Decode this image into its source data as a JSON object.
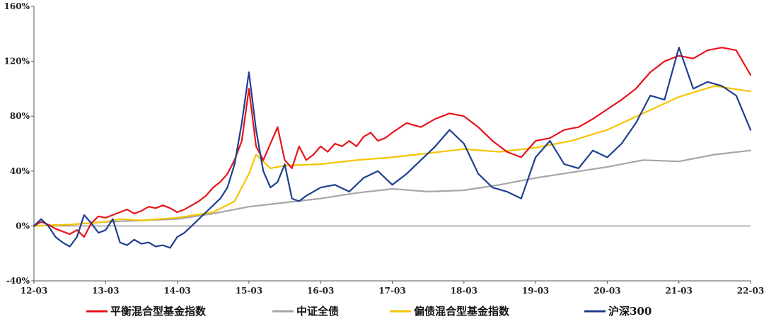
{
  "chart_data": {
    "type": "line",
    "title": "",
    "xlabel": "",
    "ylabel": "",
    "ylim": [
      -40,
      160
    ],
    "y_ticks": [
      "160%",
      "120%",
      "80%",
      "40%",
      "0%",
      "-40%"
    ],
    "y_tick_values": [
      160,
      120,
      80,
      40,
      0,
      -40
    ],
    "x_ticks": [
      "12-03",
      "13-03",
      "14-03",
      "15-03",
      "16-03",
      "17-03",
      "18-03",
      "19-03",
      "20-03",
      "21-03",
      "22-03"
    ],
    "grid": false,
    "legend_position": "bottom",
    "series": [
      {
        "name": "平衡混合型基金指数",
        "color": "#e8141a",
        "x": [
          0,
          0.1,
          0.2,
          0.3,
          0.4,
          0.5,
          0.6,
          0.7,
          0.8,
          0.9,
          1.0,
          1.1,
          1.2,
          1.3,
          1.4,
          1.5,
          1.6,
          1.7,
          1.8,
          1.9,
          2.0,
          2.1,
          2.2,
          2.3,
          2.4,
          2.5,
          2.6,
          2.7,
          2.8,
          2.9,
          3.0,
          3.1,
          3.2,
          3.3,
          3.4,
          3.5,
          3.6,
          3.7,
          3.8,
          3.9,
          4.0,
          4.1,
          4.2,
          4.3,
          4.4,
          4.5,
          4.6,
          4.7,
          4.8,
          4.9,
          5.0,
          5.2,
          5.4,
          5.6,
          5.8,
          6.0,
          6.2,
          6.4,
          6.6,
          6.8,
          7.0,
          7.2,
          7.4,
          7.6,
          7.8,
          8.0,
          8.2,
          8.4,
          8.6,
          8.8,
          9.0,
          9.2,
          9.4,
          9.6,
          9.8,
          10.0
        ],
        "values": [
          0,
          3,
          1,
          -2,
          -4,
          -6,
          -3,
          -8,
          2,
          7,
          6,
          8,
          10,
          12,
          9,
          11,
          14,
          13,
          15,
          13,
          10,
          12,
          15,
          18,
          22,
          28,
          32,
          38,
          48,
          62,
          100,
          58,
          48,
          60,
          72,
          48,
          42,
          58,
          48,
          52,
          58,
          54,
          60,
          58,
          62,
          58,
          65,
          68,
          62,
          64,
          68,
          75,
          72,
          78,
          82,
          80,
          72,
          62,
          54,
          50,
          62,
          64,
          70,
          72,
          78,
          85,
          92,
          100,
          112,
          120,
          124,
          122,
          128,
          130,
          128,
          110
        ]
      },
      {
        "name": "中证全债",
        "color": "#a6a6a6",
        "x": [
          0,
          0.5,
          1.0,
          1.5,
          2.0,
          2.5,
          3.0,
          3.5,
          4.0,
          4.5,
          5.0,
          5.5,
          6.0,
          6.5,
          7.0,
          7.5,
          8.0,
          8.5,
          9.0,
          9.5,
          10.0
        ],
        "values": [
          0,
          1,
          3,
          4,
          5,
          9,
          14,
          17,
          20,
          24,
          27,
          25,
          26,
          30,
          35,
          39,
          43,
          48,
          47,
          52,
          55
        ]
      },
      {
        "name": "偏债混合型基金指数",
        "color": "#f5c400",
        "x": [
          0,
          0.5,
          1.0,
          1.2,
          1.5,
          2.0,
          2.5,
          2.8,
          3.0,
          3.1,
          3.3,
          3.5,
          4.0,
          4.5,
          5.0,
          5.5,
          6.0,
          6.5,
          7.0,
          7.5,
          8.0,
          8.5,
          9.0,
          9.5,
          10.0
        ],
        "values": [
          0,
          1,
          3,
          5,
          4,
          6,
          10,
          18,
          38,
          52,
          42,
          44,
          45,
          48,
          50,
          53,
          56,
          54,
          57,
          62,
          70,
          82,
          94,
          102,
          98
        ]
      },
      {
        "name": "沪深300",
        "color": "#1f3f8f",
        "x": [
          0,
          0.1,
          0.2,
          0.3,
          0.4,
          0.5,
          0.6,
          0.7,
          0.8,
          0.9,
          1.0,
          1.1,
          1.2,
          1.3,
          1.4,
          1.5,
          1.6,
          1.7,
          1.8,
          1.9,
          2.0,
          2.1,
          2.2,
          2.3,
          2.4,
          2.5,
          2.6,
          2.7,
          2.8,
          2.9,
          3.0,
          3.1,
          3.2,
          3.3,
          3.4,
          3.5,
          3.6,
          3.7,
          3.8,
          3.9,
          4.0,
          4.2,
          4.4,
          4.6,
          4.8,
          5.0,
          5.2,
          5.4,
          5.6,
          5.8,
          6.0,
          6.2,
          6.4,
          6.6,
          6.8,
          7.0,
          7.2,
          7.4,
          7.6,
          7.8,
          8.0,
          8.2,
          8.4,
          8.6,
          8.8,
          9.0,
          9.2,
          9.4,
          9.6,
          9.8,
          10.0
        ],
        "values": [
          0,
          5,
          0,
          -8,
          -12,
          -15,
          -8,
          8,
          2,
          -5,
          -3,
          5,
          -12,
          -14,
          -10,
          -13,
          -12,
          -15,
          -14,
          -16,
          -8,
          -5,
          0,
          5,
          10,
          15,
          20,
          28,
          45,
          75,
          112,
          70,
          40,
          28,
          32,
          45,
          20,
          18,
          22,
          25,
          28,
          30,
          25,
          35,
          40,
          30,
          38,
          48,
          58,
          70,
          60,
          38,
          28,
          25,
          20,
          50,
          62,
          45,
          42,
          55,
          50,
          60,
          75,
          95,
          92,
          130,
          100,
          105,
          102,
          95,
          70
        ]
      }
    ]
  }
}
